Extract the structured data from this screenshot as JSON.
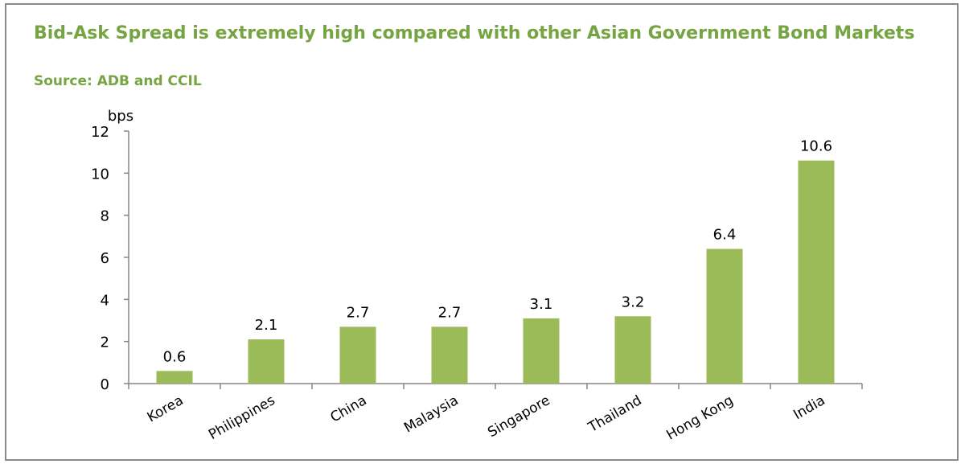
{
  "chart_data": {
    "type": "bar",
    "title": "Bid-Ask Spread is extremely high compared with other Asian Government Bond Markets",
    "subtitle": "Source: ADB and CCIL",
    "xlabel": "",
    "ylabel": "bps",
    "ylim": [
      0,
      12
    ],
    "yticks": [
      "0",
      "2",
      "4",
      "6",
      "8",
      "10",
      "12"
    ],
    "categories": [
      "Korea",
      "Philippines",
      "China",
      "Malaysia",
      "Singapore",
      "Thailand",
      "Hong Kong",
      "India"
    ],
    "values": [
      0.6,
      2.1,
      2.7,
      2.7,
      3.1,
      3.2,
      6.4,
      10.6
    ],
    "value_labels": [
      "0.6",
      "2.1",
      "2.7",
      "2.7",
      "3.1",
      "3.2",
      "6.4",
      "10.6"
    ],
    "bar_color": "#9bbb59",
    "title_color": "#77a442",
    "grid": false,
    "legend": "none"
  }
}
